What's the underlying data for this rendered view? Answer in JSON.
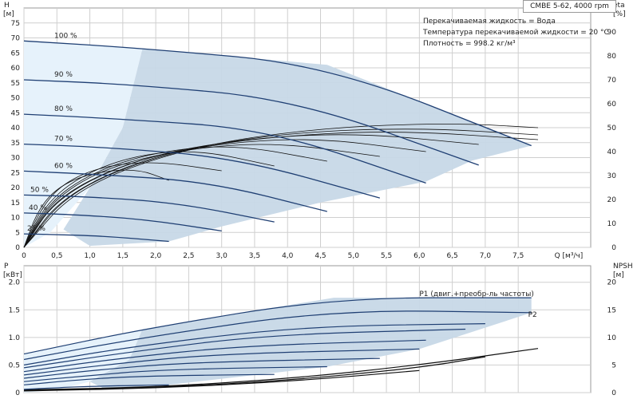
{
  "title": "CMBE 5-62, 4000 rpm",
  "liquid_info": [
    "Перекачиваемая жидкость = Вода",
    "Температура перекачиваемой жидкости = 20 °C",
    "Плотность = 998.2 кг/м³"
  ],
  "colors": {
    "curve": "#1f3f73",
    "band": "#c7d8e7",
    "band_light": "#e6f2fb",
    "grid": "#cfcfcf",
    "eta": "#111111"
  },
  "chart_data": [
    {
      "type": "line",
      "panel": "top",
      "x_unit_label": "Q [м³/ч]",
      "y_label_line1": "H",
      "y_label_line2": "[м]",
      "y2_label_line1": "eta",
      "y2_label_line2": "[%]",
      "xlim": [
        0,
        8.6
      ],
      "ylim": [
        0,
        80
      ],
      "y2lim": [
        0,
        100
      ],
      "x_ticks": [
        "0",
        "0,5",
        "1,0",
        "1,5",
        "2,0",
        "2,5",
        "3,0",
        "3,5",
        "4,0",
        "4,5",
        "5,0",
        "5,5",
        "6,0",
        "6,5",
        "7,0",
        "7,5"
      ],
      "x_tick_values": [
        0,
        0.5,
        1,
        1.5,
        2,
        2.5,
        3,
        3.5,
        4,
        4.5,
        5,
        5.5,
        6,
        6.5,
        7,
        7.5
      ],
      "y_ticks": [
        0,
        5,
        10,
        15,
        20,
        25,
        30,
        35,
        40,
        45,
        50,
        55,
        60,
        65,
        70,
        75
      ],
      "y2_ticks": [
        0,
        10,
        20,
        30,
        40,
        50,
        60,
        70,
        80,
        90
      ],
      "grid": true,
      "speed_labels": [
        "100 %",
        "90 %",
        "80 %",
        "70 %",
        "60 %",
        "50 %",
        "40 %",
        "25 %"
      ],
      "series": [
        {
          "name": "100 %",
          "x": [
            0,
            1.8,
            4.6,
            7.7
          ],
          "y": [
            69,
            66.5,
            61,
            34
          ]
        },
        {
          "name": "90 %",
          "x": [
            0,
            1.6,
            4.1,
            6.9
          ],
          "y": [
            56,
            54.5,
            49.5,
            27.5
          ]
        },
        {
          "name": "80 %",
          "x": [
            0,
            1.4,
            3.7,
            6.1
          ],
          "y": [
            44.5,
            43,
            39.5,
            21.5
          ]
        },
        {
          "name": "70 %",
          "x": [
            0,
            1.2,
            3.2,
            5.4
          ],
          "y": [
            34.5,
            33.5,
            30,
            16.5
          ]
        },
        {
          "name": "60 %",
          "x": [
            0,
            1.0,
            2.8,
            4.6
          ],
          "y": [
            25.5,
            24.5,
            22,
            12
          ]
        },
        {
          "name": "50 %",
          "x": [
            0,
            0.9,
            2.3,
            3.8
          ],
          "y": [
            17.5,
            17,
            15,
            8.5
          ]
        },
        {
          "name": "40 %",
          "x": [
            0,
            0.7,
            1.8,
            3.0
          ],
          "y": [
            11.5,
            11,
            9.5,
            5.5
          ]
        },
        {
          "name": "25 %",
          "x": [
            0,
            0.45,
            1.2,
            2.2
          ],
          "y": [
            4.5,
            4.3,
            3.8,
            2
          ]
        }
      ],
      "eta_curves": [
        {
          "x": [
            0,
            0.8,
            2.5,
            4.5,
            6.5,
            7.8
          ],
          "y": [
            0,
            25,
            42,
            50,
            52,
            50
          ]
        },
        {
          "x": [
            0,
            0.7,
            2.2,
            4.0,
            6.0,
            7.8
          ],
          "y": [
            0,
            24,
            40,
            48,
            50,
            47
          ]
        },
        {
          "x": [
            0,
            0.6,
            2.0,
            3.6,
            5.6,
            7.8
          ],
          "y": [
            0,
            22,
            39,
            46,
            49,
            45
          ]
        },
        {
          "x": [
            0,
            0.5,
            1.7,
            3.2,
            5.0,
            6.9
          ],
          "y": [
            0,
            21,
            37,
            45,
            48,
            43
          ]
        },
        {
          "x": [
            0,
            0.45,
            1.5,
            2.8,
            4.4,
            6.1
          ],
          "y": [
            0,
            20,
            35,
            43,
            46,
            40
          ]
        },
        {
          "x": [
            0,
            0.4,
            1.2,
            2.4,
            3.8,
            5.4
          ],
          "y": [
            0,
            19,
            33,
            41,
            44,
            38
          ]
        },
        {
          "x": [
            0,
            0.35,
            1.0,
            2.0,
            3.2,
            4.6
          ],
          "y": [
            0,
            18,
            31,
            40,
            43,
            36
          ]
        },
        {
          "x": [
            0,
            0.3,
            0.8,
            1.6,
            2.6,
            3.8
          ],
          "y": [
            0,
            17,
            29,
            38,
            41,
            34
          ]
        },
        {
          "x": [
            0,
            0.25,
            0.6,
            1.2,
            2.0,
            3.0
          ],
          "y": [
            0,
            16,
            27,
            34,
            36,
            32
          ]
        },
        {
          "x": [
            0,
            0.2,
            0.5,
            1.0,
            1.7,
            2.2
          ],
          "y": [
            0,
            15,
            25,
            31,
            33,
            28
          ]
        }
      ]
    },
    {
      "type": "line",
      "panel": "bottom",
      "y_label_line1": "P",
      "y_label_line2": "[кВт]",
      "y2_label_line1": "NPSH",
      "y2_label_line2": "[м]",
      "xlim": [
        0,
        8.6
      ],
      "ylim": [
        0,
        2.3
      ],
      "y2lim": [
        0,
        23
      ],
      "y_ticks": [
        "0",
        "0.5",
        "1.0",
        "1.5",
        "2.0"
      ],
      "y_tick_values": [
        0,
        0.5,
        1.0,
        1.5,
        2.0
      ],
      "y2_ticks": [
        0,
        5,
        10,
        15,
        20
      ],
      "grid": true,
      "series": [
        {
          "name": "P1 (двиг.+преобр-ль частоты)",
          "x": [
            0,
            1.8,
            4.7,
            7.7
          ],
          "y": [
            0.7,
            1.15,
            1.72,
            1.72
          ]
        },
        {
          "name": "P2",
          "x": [
            0,
            1.8,
            4.7,
            7.7
          ],
          "y": [
            0.6,
            1.0,
            1.5,
            1.45
          ]
        },
        {
          "x": [
            0,
            1.6,
            4.2,
            7.0
          ],
          "y": [
            0.5,
            0.83,
            1.2,
            1.25
          ]
        },
        {
          "x": [
            0,
            1.5,
            3.7,
            6.7
          ],
          "y": [
            0.45,
            0.72,
            1.05,
            1.15
          ]
        },
        {
          "x": [
            0,
            1.3,
            3.3,
            6.1
          ],
          "y": [
            0.38,
            0.6,
            0.85,
            0.95
          ]
        },
        {
          "x": [
            0,
            1.2,
            2.9,
            6.0
          ],
          "y": [
            0.32,
            0.5,
            0.7,
            0.79
          ]
        },
        {
          "x": [
            0,
            1.0,
            2.5,
            5.4
          ],
          "y": [
            0.26,
            0.4,
            0.55,
            0.62
          ]
        },
        {
          "x": [
            0,
            0.9,
            2.1,
            4.6
          ],
          "y": [
            0.2,
            0.3,
            0.42,
            0.47
          ]
        },
        {
          "x": [
            0,
            0.7,
            1.7,
            3.8
          ],
          "y": [
            0.14,
            0.22,
            0.3,
            0.33
          ]
        },
        {
          "x": [
            0,
            0.5,
            1.2,
            2.2
          ],
          "y": [
            0.06,
            0.09,
            0.12,
            0.14
          ]
        }
      ],
      "npsh_curves": [
        {
          "x": [
            0,
            2,
            4,
            6,
            7.8
          ],
          "y2": [
            0.5,
            1.0,
            2.5,
            5.0,
            8.0
          ]
        },
        {
          "x": [
            0,
            2,
            4,
            6,
            7.0
          ],
          "y2": [
            0.4,
            0.9,
            2.2,
            4.5,
            6.5
          ]
        },
        {
          "x": [
            0,
            2,
            4,
            6.0
          ],
          "y2": [
            0.3,
            0.8,
            2.0,
            4.0
          ]
        }
      ]
    }
  ]
}
